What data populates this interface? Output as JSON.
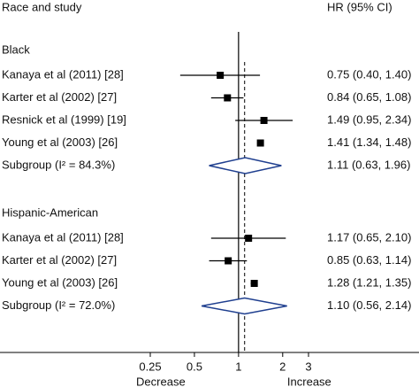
{
  "chart_data": {
    "type": "forest",
    "column_headers": [
      "Race and study",
      "HR (95% CI)"
    ],
    "groups": [
      {
        "name": "Black",
        "studies": [
          {
            "label": "Kanaya et al (2011) [28]",
            "value": 0.75,
            "lower": 0.4,
            "upper": 1.4,
            "value_label": "0.75 (0.40, 1.40)"
          },
          {
            "label": "Karter et al (2002) [27]",
            "value": 0.84,
            "lower": 0.65,
            "upper": 1.08,
            "value_label": "0.84 (0.65, 1.08)"
          },
          {
            "label": "Resnick et al (1999) [19]",
            "value": 1.49,
            "lower": 0.95,
            "upper": 2.34,
            "value_label": "1.49 (0.95, 2.34)"
          },
          {
            "label": "Young et al (2003) [26]",
            "value": 1.41,
            "lower": 1.34,
            "upper": 1.48,
            "value_label": "1.41 (1.34, 1.48)"
          }
        ],
        "subgroup": {
          "label": "Subgroup (I² = 84.3%)",
          "value": 1.11,
          "lower": 0.63,
          "upper": 1.96,
          "value_label": "1.11 (0.63, 1.96)"
        }
      },
      {
        "name": "Hispanic-American",
        "studies": [
          {
            "label": "Kanaya et al (2011) [28]",
            "value": 1.17,
            "lower": 0.65,
            "upper": 2.1,
            "value_label": "1.17 (0.65, 2.10)"
          },
          {
            "label": "Karter et al (2002) [27]",
            "value": 0.85,
            "lower": 0.63,
            "upper": 1.14,
            "value_label": "0.85 (0.63, 1.14)"
          },
          {
            "label": "Young et al (2003) [26]",
            "value": 1.28,
            "lower": 1.21,
            "upper": 1.35,
            "value_label": "1.28 (1.21, 1.35)"
          }
        ],
        "subgroup": {
          "label": "Subgroup (I² = 72.0%)",
          "value": 1.1,
          "lower": 0.56,
          "upper": 2.14,
          "value_label": "1.10 (0.56, 2.14)"
        }
      }
    ],
    "log_x": true,
    "xlim": [
      0.25,
      3
    ],
    "xticks": [
      0.25,
      0.5,
      1,
      2,
      3
    ],
    "null_line": 1,
    "overall_line": 1.1,
    "direction_labels": [
      "Decrease",
      "Increase"
    ],
    "marker_color": "#000000",
    "diamond_color": "#1f3f8f"
  }
}
